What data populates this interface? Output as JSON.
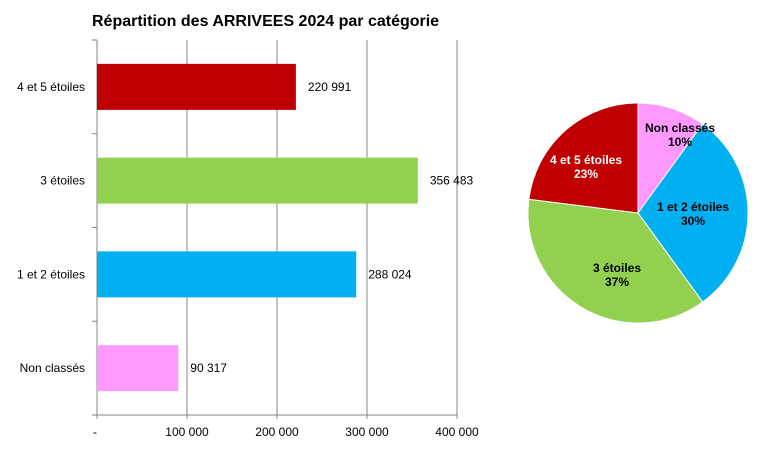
{
  "chart_data": [
    {
      "type": "bar",
      "orientation": "horizontal",
      "title": "Répartition des ARRIVEES 2024 par catégorie",
      "categories": [
        "4 et 5 étoiles",
        "3 étoiles",
        "1 et 2 étoiles",
        "Non classés"
      ],
      "values": [
        220991,
        356483,
        288024,
        90317
      ],
      "data_labels": [
        "220 991",
        "356 483",
        "288 024",
        "90 317"
      ],
      "colors": [
        "#C00000",
        "#92D050",
        "#00B0F0",
        "#FF99FF"
      ],
      "xlim": [
        0,
        400000
      ],
      "x_ticks": [
        0,
        100000,
        200000,
        300000,
        400000
      ],
      "x_tick_labels": [
        "-",
        "100 000",
        "200 000",
        "300 000",
        "400 000"
      ],
      "grid": true,
      "legend": "none"
    },
    {
      "type": "pie",
      "categories": [
        "Non classés",
        "1 et 2 étoiles",
        "3 étoiles",
        "4 et 5 étoiles"
      ],
      "values": [
        10,
        30,
        37,
        23
      ],
      "data_labels": [
        "10%",
        "30%",
        "37%",
        "23%"
      ],
      "colors": [
        "#FF99FF",
        "#00B0F0",
        "#92D050",
        "#C00000"
      ],
      "label_colors": [
        "#000000",
        "#000000",
        "#000000",
        "#FFFFFF"
      ],
      "legend": "none"
    }
  ]
}
